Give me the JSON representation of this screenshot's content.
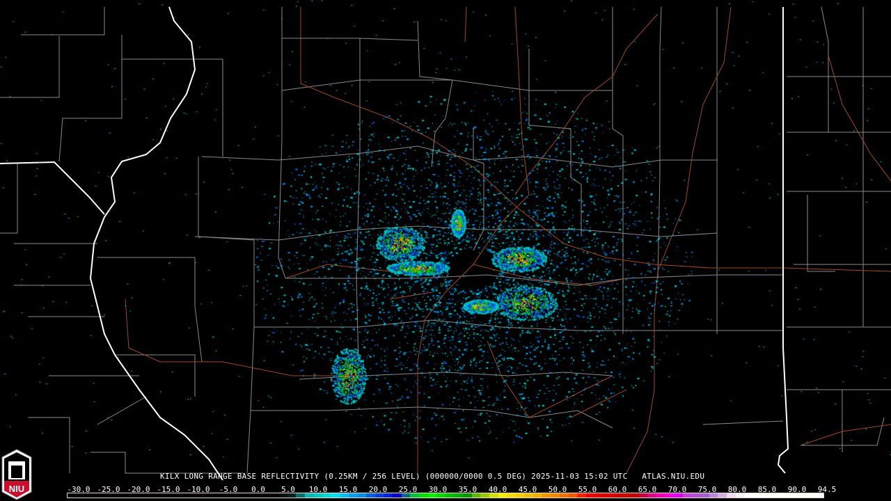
{
  "header": {
    "title": "KILX LONG RANGE BASE REFLECTIVITY (0.25KM / 256 LEVEL) (000000/0000 0.5 DEG) 2025-11-03 15:02 UTC   ATLAS.NIU.EDU"
  },
  "logo": {
    "text": "NIU",
    "icon": "niu-logo"
  },
  "legend": {
    "labels": [
      "-30.0",
      "-25.0",
      "-20.0",
      "-15.0",
      "-10.0",
      "-5.0",
      "0.0",
      "5.0",
      "10.0",
      "15.0",
      "20.0",
      "25.0",
      "30.0",
      "35.0",
      "40.0",
      "45.0",
      "50.0",
      "55.0",
      "60.0",
      "65.0",
      "70.0",
      "75.0",
      "80.0",
      "85.0",
      "90.0",
      "94.5"
    ],
    "colors": [
      "#000000",
      "#000000",
      "#000000",
      "#000000",
      "#000000",
      "#000000",
      "#000000",
      "#000000",
      "#000000",
      "#000000",
      "#000000",
      "#000000",
      "#000000",
      "#000000",
      "#000000",
      "#000000",
      "#000000",
      "#000000",
      "#000000",
      "#000000",
      "#000000",
      "#000000",
      "#000000",
      "#000000",
      "#001010",
      "#002020",
      "#007070",
      "#00b8b8",
      "#00c8c8",
      "#00d8d8",
      "#00e0f0",
      "#00c0f0",
      "#00a0f0",
      "#0090e8",
      "#0060e0",
      "#0040e0",
      "#0020e0",
      "#0000d0",
      "#007080",
      "#00c040",
      "#00e000",
      "#00f000",
      "#00d800",
      "#00c000",
      "#00b000",
      "#009800",
      "#60b800",
      "#98c800",
      "#d0e000",
      "#f0f000",
      "#f0e000",
      "#f0d000",
      "#e8c000",
      "#f0b000",
      "#f09800",
      "#f08800",
      "#f07000",
      "#f05800",
      "#f02000",
      "#f00000",
      "#e00000",
      "#d80000",
      "#d00000",
      "#c80000",
      "#c00000",
      "#c80040",
      "#e00090",
      "#f000b0",
      "#f000e0",
      "#e000f0",
      "#c040e0",
      "#b050d8",
      "#a060d0",
      "#b888e0",
      "#d0b0e8",
      "#e8e0f0",
      "#f4f0f8",
      "#ffffff",
      "#ffffff",
      "#ffffff",
      "#ffffff",
      "#ffffff",
      "#ffffff",
      "#ffffff",
      "#ffffff",
      "#ffffff"
    ]
  },
  "map": {
    "state_border_color": "#ffffff",
    "county_border_color": "#8a8a8a",
    "road_color": "#a04a20",
    "radar_site": "KILX"
  }
}
